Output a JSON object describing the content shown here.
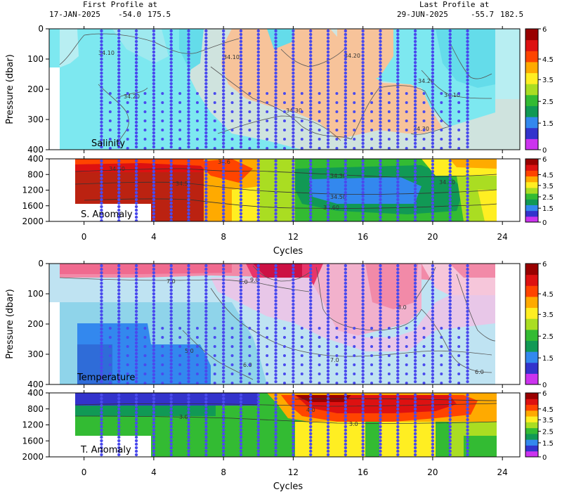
{
  "header": {
    "first_label": "First Profile at",
    "first_date": "17-JAN-2025",
    "first_lat": "-54.0",
    "first_lon": "175.5",
    "last_label": "Last Profile at",
    "last_date": "29-JUN-2025",
    "last_lat": "-55.7",
    "last_lon": "182.5"
  },
  "colors": {
    "profile_dots": "#4a4aee",
    "scale": [
      "#cc33ee",
      "#3333cc",
      "#3388ee",
      "#119955",
      "#33bb33",
      "#aadd22",
      "#ffee22",
      "#ffaa00",
      "#ff4400",
      "#dd1111",
      "#990000"
    ]
  },
  "chart_data": [
    {
      "type": "heatmap",
      "name": "salinity-section",
      "label": "Salinity",
      "ylabel": "Pressure (dbar)",
      "xlim": [
        -2,
        25
      ],
      "ylim": [
        0,
        400
      ],
      "yticks": [
        "0",
        "100",
        "200",
        "300",
        "400"
      ],
      "contours": [
        "34.10",
        "34.20",
        "34.20",
        "34.30",
        "34.30",
        "34.10",
        "34.10",
        "34.20"
      ],
      "profile_cycles": [
        1,
        2,
        3,
        4,
        5,
        6,
        7,
        8,
        9,
        10,
        11,
        12,
        13,
        14,
        15,
        16,
        17,
        18,
        19,
        20,
        21,
        22
      ],
      "colorbar": [
        "6",
        "4.5",
        "3.5",
        "2.5",
        "1.5",
        "0"
      ]
    },
    {
      "type": "heatmap",
      "name": "salinity-anomaly",
      "label": "S. Anomaly",
      "ylim": [
        400,
        2000
      ],
      "yticks": [
        "400",
        "800",
        "1200",
        "1600",
        "2000"
      ],
      "contours": [
        "34.50",
        "34.6",
        "34.5",
        "34.30",
        "34.40",
        "34.50",
        "34.60"
      ],
      "colorbar": [
        "6",
        "4.5",
        "3.5",
        "2.5",
        "1.5",
        "0"
      ]
    },
    {
      "type": "heatmap",
      "name": "temperature-section",
      "label": "Temperature",
      "ylabel": "Pressure (dbar)",
      "xlim": [
        -2,
        25
      ],
      "ylim": [
        0,
        400
      ],
      "yticks": [
        "0",
        "100",
        "200",
        "300",
        "400"
      ],
      "contours": [
        "7.0",
        "8.0",
        "9.0",
        "8.0",
        "7.0",
        "6.0",
        "6.0",
        "5.0"
      ],
      "colorbar": [
        "6",
        "4.5",
        "3.5",
        "2.5",
        "1.5",
        "0"
      ]
    },
    {
      "type": "heatmap",
      "name": "temperature-anomaly",
      "label": "T. Anomaly",
      "ylim": [
        400,
        2000
      ],
      "yticks": [
        "400",
        "800",
        "1200",
        "1600",
        "2000"
      ],
      "contours": [
        "4.0",
        "3.0",
        "3.0"
      ],
      "colorbar": [
        "6",
        "4.5",
        "3.5",
        "2.5",
        "1.5",
        "0"
      ]
    }
  ],
  "xaxis": {
    "label": "Cycles",
    "ticks": [
      "0",
      "4",
      "8",
      "12",
      "16",
      "20",
      "24"
    ]
  }
}
